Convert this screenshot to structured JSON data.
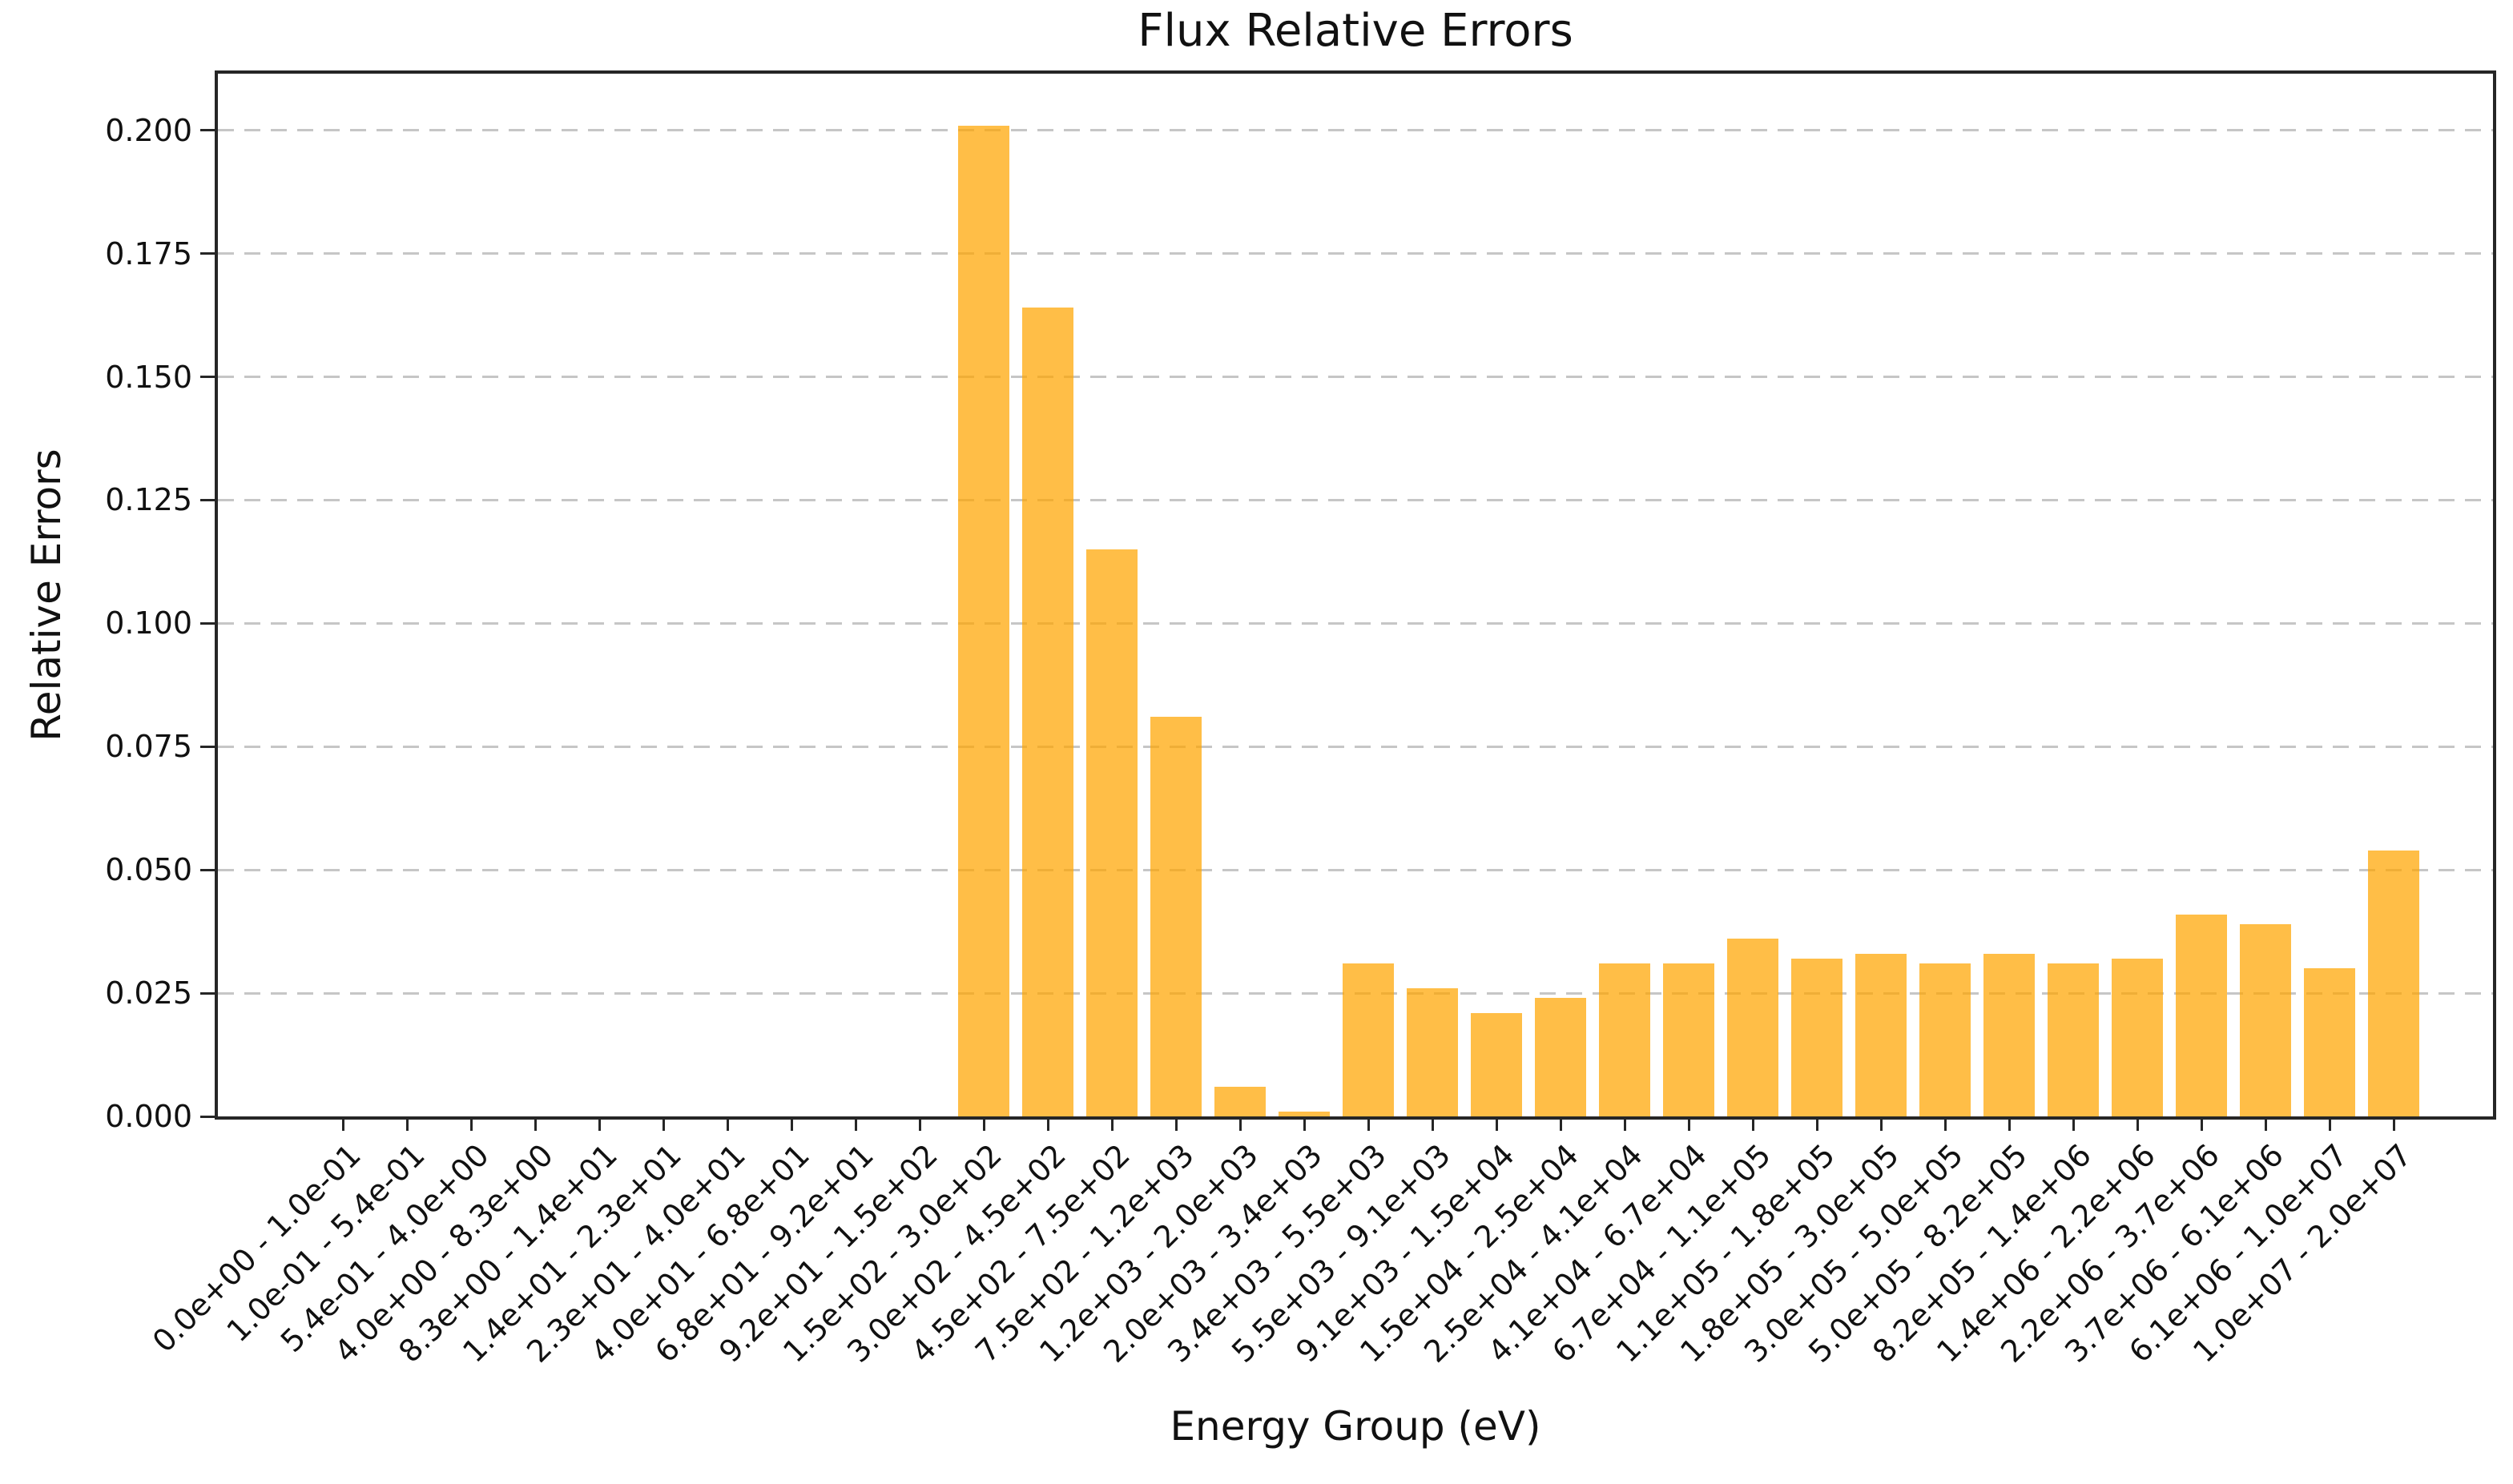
{
  "chart_data": {
    "type": "bar",
    "title": "Flux Relative Errors",
    "xlabel": "Energy Group (eV)",
    "ylabel": "Relative Errors",
    "categories": [
      "0.0e+00 - 1.0e-01",
      "1.0e-01 - 5.4e-01",
      "5.4e-01 - 4.0e+00",
      "4.0e+00 - 8.3e+00",
      "8.3e+00 - 1.4e+01",
      "1.4e+01 - 2.3e+01",
      "2.3e+01 - 4.0e+01",
      "4.0e+01 - 6.8e+01",
      "6.8e+01 - 9.2e+01",
      "9.2e+01 - 1.5e+02",
      "1.5e+02 - 3.0e+02",
      "3.0e+02 - 4.5e+02",
      "4.5e+02 - 7.5e+02",
      "7.5e+02 - 1.2e+03",
      "1.2e+03 - 2.0e+03",
      "2.0e+03 - 3.4e+03",
      "3.4e+03 - 5.5e+03",
      "5.5e+03 - 9.1e+03",
      "9.1e+03 - 1.5e+04",
      "1.5e+04 - 2.5e+04",
      "2.5e+04 - 4.1e+04",
      "4.1e+04 - 6.7e+04",
      "6.7e+04 - 1.1e+05",
      "1.1e+05 - 1.8e+05",
      "1.8e+05 - 3.0e+05",
      "3.0e+05 - 5.0e+05",
      "5.0e+05 - 8.2e+05",
      "8.2e+05 - 1.4e+06",
      "1.4e+06 - 2.2e+06",
      "2.2e+06 - 3.7e+06",
      "3.7e+06 - 6.1e+06",
      "6.1e+06 - 1.0e+07",
      "1.0e+07 - 2.0e+07"
    ],
    "values": [
      0.0,
      0.0,
      0.0,
      0.0,
      0.0,
      0.0,
      0.0,
      0.0,
      0.0,
      0.0,
      0.201,
      0.164,
      0.115,
      0.081,
      0.006,
      0.001,
      0.031,
      0.026,
      0.021,
      0.024,
      0.031,
      0.031,
      0.036,
      0.032,
      0.033,
      0.031,
      0.033,
      0.031,
      0.032,
      0.041,
      0.039,
      0.03,
      0.054
    ],
    "ylim": [
      0,
      0.2115
    ],
    "yticks": [
      0.0,
      0.025,
      0.05,
      0.075,
      0.1,
      0.125,
      0.15,
      0.175,
      0.2
    ],
    "ytick_labels": [
      "0.000",
      "0.025",
      "0.050",
      "0.075",
      "0.100",
      "0.125",
      "0.150",
      "0.175",
      "0.200"
    ],
    "xtick_rotation": 45,
    "bar_color": "#FFA500",
    "bar_alpha": 0.72,
    "grid": {
      "axis": "y",
      "style": "dashed",
      "color": "#c6c6c6"
    },
    "spine_color": "#262626",
    "legend_position": "none"
  }
}
